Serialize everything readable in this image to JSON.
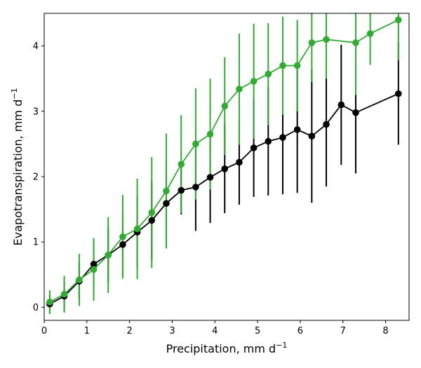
{
  "chart_data": {
    "type": "line",
    "xlabel": "Precipitation,  mm d",
    "xlabel_exp": "−1",
    "ylabel": "Evapotranspiration,  mm d",
    "ylabel_exp": "−1",
    "xlim": [
      0,
      8.55
    ],
    "ylim": [
      -0.2,
      4.5
    ],
    "xticks": [
      0,
      1,
      2,
      3,
      4,
      5,
      6,
      7,
      8
    ],
    "yticks": [
      0,
      1,
      2,
      3,
      4
    ],
    "grid": false,
    "series": [
      {
        "color": "#000000",
        "x": [
          0.13,
          0.47,
          0.82,
          1.16,
          1.5,
          1.84,
          2.18,
          2.52,
          2.86,
          3.21,
          3.55,
          3.89,
          4.23,
          4.57,
          4.91,
          5.25,
          5.59,
          5.93,
          6.27,
          6.61,
          6.96,
          7.3,
          8.3
        ],
        "y": [
          0.05,
          0.17,
          0.4,
          0.66,
          0.8,
          0.96,
          1.15,
          1.33,
          1.59,
          1.79,
          1.84,
          1.99,
          2.12,
          2.22,
          2.44,
          2.54,
          2.6,
          2.72,
          2.62,
          2.8,
          3.1,
          2.98,
          3.27
        ],
        "err": [
          0.15,
          0.22,
          0.28,
          0.35,
          0.42,
          0.48,
          0.55,
          0.6,
          0.65,
          0.37,
          0.67,
          0.7,
          0.68,
          0.65,
          0.75,
          0.83,
          0.87,
          0.97,
          1.02,
          0.95,
          0.92,
          0.93,
          0.78
        ]
      },
      {
        "color": "#33aa33",
        "x": [
          0.13,
          0.47,
          0.82,
          1.16,
          1.5,
          1.84,
          2.18,
          2.52,
          2.86,
          3.21,
          3.55,
          3.89,
          4.23,
          4.57,
          4.91,
          5.25,
          5.59,
          5.93,
          6.27,
          6.61,
          7.3,
          7.64,
          8.3
        ],
        "y": [
          0.08,
          0.2,
          0.42,
          0.58,
          0.8,
          1.08,
          1.2,
          1.45,
          1.78,
          2.19,
          2.5,
          2.65,
          3.08,
          3.34,
          3.46,
          3.57,
          3.7,
          3.7,
          4.05,
          4.1,
          4.05,
          4.19,
          4.4
        ],
        "err": [
          0.18,
          0.28,
          0.4,
          0.48,
          0.58,
          0.64,
          0.77,
          0.85,
          0.88,
          0.75,
          0.85,
          0.85,
          0.75,
          0.85,
          0.88,
          0.78,
          0.75,
          0.7,
          0.6,
          0.6,
          0.8,
          0.48,
          0.62
        ]
      }
    ]
  }
}
